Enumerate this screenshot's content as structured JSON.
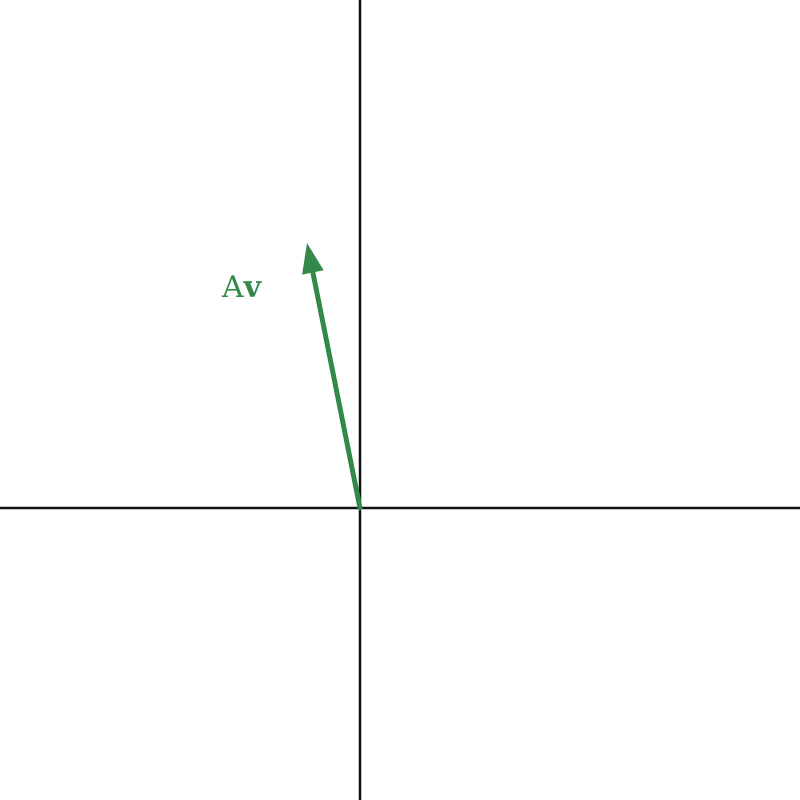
{
  "diagram": {
    "title": "",
    "vector": {
      "label_prefix": "A",
      "label_bold": "v",
      "components": [
        -0.2,
        1.0
      ],
      "color": "#33894a"
    },
    "axes_color": "#111111",
    "background": "#ffffff"
  }
}
